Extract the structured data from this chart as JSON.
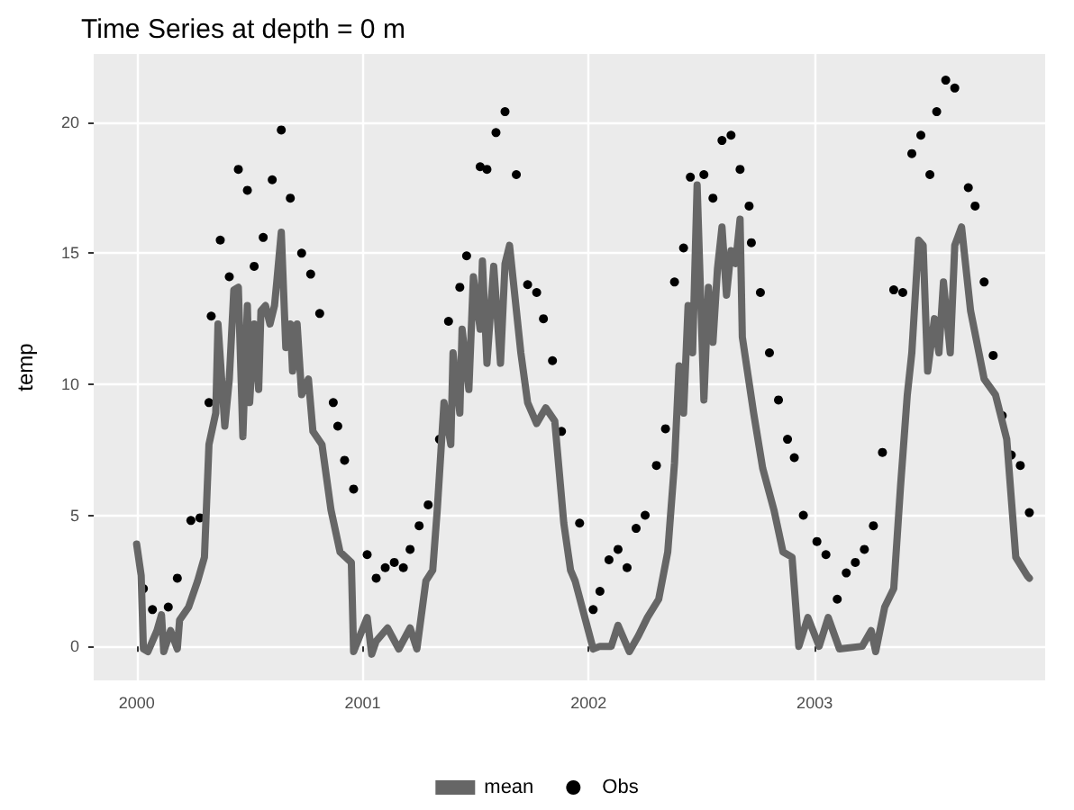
{
  "chart_data": {
    "type": "line",
    "title": "Time Series at depth = 0 m",
    "ylabel": "temp",
    "xlim": [
      1999.81,
      2004.02
    ],
    "ylim": [
      -1.3,
      22.6
    ],
    "xticks": [
      2000,
      2001,
      2002,
      2003
    ],
    "yticks": [
      0,
      5,
      10,
      15,
      20
    ],
    "grid": true,
    "legend": "bottom",
    "series": [
      {
        "name": "mean",
        "color": "#666666",
        "x": [
          2000.0,
          2000.02,
          2000.03,
          2000.05,
          2000.07,
          2000.09,
          2000.11,
          2000.12,
          2000.15,
          2000.18,
          2000.19,
          2000.23,
          2000.27,
          2000.3,
          2000.32,
          2000.35,
          2000.36,
          2000.39,
          2000.41,
          2000.43,
          2000.45,
          2000.47,
          2000.49,
          2000.5,
          2000.52,
          2000.54,
          2000.55,
          2000.57,
          2000.59,
          2000.61,
          2000.62,
          2000.64,
          2000.66,
          2000.68,
          2000.69,
          2000.71,
          2000.73,
          2000.76,
          2000.78,
          2000.82,
          2000.86,
          2000.9,
          2000.95,
          2000.96,
          2001.02,
          2001.04,
          2001.06,
          2001.11,
          2001.16,
          2001.21,
          2001.24,
          2001.28,
          2001.31,
          2001.33,
          2001.36,
          2001.39,
          2001.4,
          2001.43,
          2001.44,
          2001.47,
          2001.49,
          2001.52,
          2001.53,
          2001.55,
          2001.58,
          2001.61,
          2001.63,
          2001.65,
          2001.7,
          2001.73,
          2001.77,
          2001.81,
          2001.85,
          2001.89,
          2001.92,
          2001.94,
          2002.02,
          2002.05,
          2002.1,
          2002.13,
          2002.18,
          2002.22,
          2002.26,
          2002.31,
          2002.35,
          2002.38,
          2002.4,
          2002.42,
          2002.44,
          2002.46,
          2002.48,
          2002.51,
          2002.53,
          2002.55,
          2002.57,
          2002.59,
          2002.61,
          2002.63,
          2002.65,
          2002.67,
          2002.68,
          2002.73,
          2002.77,
          2002.82,
          2002.86,
          2002.9,
          2002.93,
          2002.97,
          2003.02,
          2003.06,
          2003.11,
          2003.21,
          2003.25,
          2003.27,
          2003.31,
          2003.35,
          2003.38,
          2003.41,
          2003.43,
          2003.46,
          2003.48,
          2003.5,
          2003.53,
          2003.55,
          2003.57,
          2003.6,
          2003.62,
          2003.65,
          2003.69,
          2003.75,
          2003.8,
          2003.85,
          2003.89,
          2003.94,
          2003.95
        ],
        "values": [
          3.9,
          2.7,
          -0.1,
          -0.2,
          0.2,
          0.6,
          1.2,
          -0.2,
          0.6,
          -0.1,
          1.0,
          1.5,
          2.5,
          3.4,
          7.7,
          8.9,
          12.3,
          8.4,
          10.2,
          13.6,
          13.7,
          8.0,
          13.0,
          9.3,
          12.3,
          9.8,
          12.8,
          13.0,
          12.3,
          13.0,
          13.9,
          15.8,
          11.4,
          12.3,
          10.5,
          12.3,
          9.6,
          10.2,
          8.2,
          7.7,
          5.2,
          3.6,
          3.2,
          -0.2,
          1.1,
          -0.3,
          0.2,
          0.7,
          -0.1,
          0.7,
          -0.1,
          2.5,
          2.9,
          5.2,
          9.3,
          7.7,
          11.2,
          8.9,
          12.1,
          9.8,
          14.1,
          12.1,
          14.7,
          10.8,
          14.5,
          10.8,
          14.6,
          15.3,
          11.2,
          9.3,
          8.5,
          9.1,
          8.6,
          4.7,
          2.9,
          2.5,
          -0.1,
          0.0,
          0.0,
          0.8,
          -0.2,
          0.4,
          1.1,
          1.8,
          3.6,
          7.0,
          10.7,
          8.9,
          13.0,
          11.2,
          17.6,
          9.4,
          13.7,
          11.6,
          14.4,
          16.0,
          13.4,
          15.1,
          14.6,
          16.3,
          11.8,
          8.9,
          6.8,
          5.2,
          3.6,
          3.4,
          0.0,
          1.1,
          0.0,
          1.1,
          -0.1,
          0.0,
          0.6,
          -0.2,
          1.5,
          2.2,
          6.1,
          9.6,
          11.2,
          15.5,
          15.3,
          10.5,
          12.5,
          11.2,
          13.9,
          11.2,
          15.3,
          16.0,
          12.8,
          10.2,
          9.6,
          7.9,
          3.4,
          2.7,
          2.6
        ]
      },
      {
        "name": "Obs",
        "type": "scatter",
        "color": "#000000",
        "x": [
          2000.03,
          2000.07,
          2000.14,
          2000.18,
          2000.24,
          2000.28,
          2000.32,
          2000.33,
          2000.37,
          2000.41,
          2000.45,
          2000.49,
          2000.52,
          2000.56,
          2000.6,
          2000.64,
          2000.68,
          2000.73,
          2000.77,
          2000.81,
          2000.87,
          2000.89,
          2000.92,
          2000.96,
          2001.02,
          2001.06,
          2001.1,
          2001.14,
          2001.18,
          2001.21,
          2001.25,
          2001.29,
          2001.34,
          2001.38,
          2001.43,
          2001.46,
          2001.52,
          2001.55,
          2001.59,
          2001.63,
          2001.68,
          2001.73,
          2001.77,
          2001.8,
          2001.84,
          2001.88,
          2001.96,
          2002.02,
          2002.05,
          2002.09,
          2002.13,
          2002.17,
          2002.21,
          2002.25,
          2002.3,
          2002.34,
          2002.38,
          2002.42,
          2002.45,
          2002.51,
          2002.55,
          2002.59,
          2002.63,
          2002.67,
          2002.71,
          2002.72,
          2002.76,
          2002.8,
          2002.84,
          2002.88,
          2002.91,
          2002.95,
          2003.01,
          2003.05,
          2003.1,
          2003.14,
          2003.18,
          2003.22,
          2003.26,
          2003.3,
          2003.35,
          2003.39,
          2003.43,
          2003.47,
          2003.51,
          2003.54,
          2003.58,
          2003.62,
          2003.68,
          2003.71,
          2003.75,
          2003.79,
          2003.83,
          2003.87,
          2003.91,
          2003.95
        ],
        "values": [
          2.2,
          1.4,
          1.5,
          2.6,
          4.8,
          4.9,
          9.3,
          12.6,
          15.5,
          14.1,
          18.2,
          17.4,
          14.5,
          15.6,
          17.8,
          19.7,
          17.1,
          15.0,
          14.2,
          12.7,
          9.3,
          8.4,
          7.1,
          6.0,
          3.5,
          2.6,
          3.0,
          3.2,
          3.0,
          3.7,
          4.6,
          5.4,
          7.9,
          12.4,
          13.7,
          14.9,
          18.3,
          18.2,
          19.6,
          20.4,
          18.0,
          13.8,
          13.5,
          12.5,
          10.9,
          8.2,
          4.7,
          1.4,
          2.1,
          3.3,
          3.7,
          3.0,
          4.5,
          5.0,
          6.9,
          8.3,
          13.9,
          15.2,
          17.9,
          18.0,
          17.1,
          19.3,
          19.5,
          18.2,
          16.8,
          15.4,
          13.5,
          11.2,
          9.4,
          7.9,
          7.2,
          5.0,
          4.0,
          3.5,
          1.8,
          2.8,
          3.2,
          3.7,
          4.6,
          7.4,
          13.6,
          13.5,
          18.8,
          19.5,
          18.0,
          20.4,
          21.6,
          21.3,
          17.5,
          16.8,
          13.9,
          11.1,
          8.8,
          7.3,
          6.9,
          5.1
        ]
      }
    ]
  }
}
